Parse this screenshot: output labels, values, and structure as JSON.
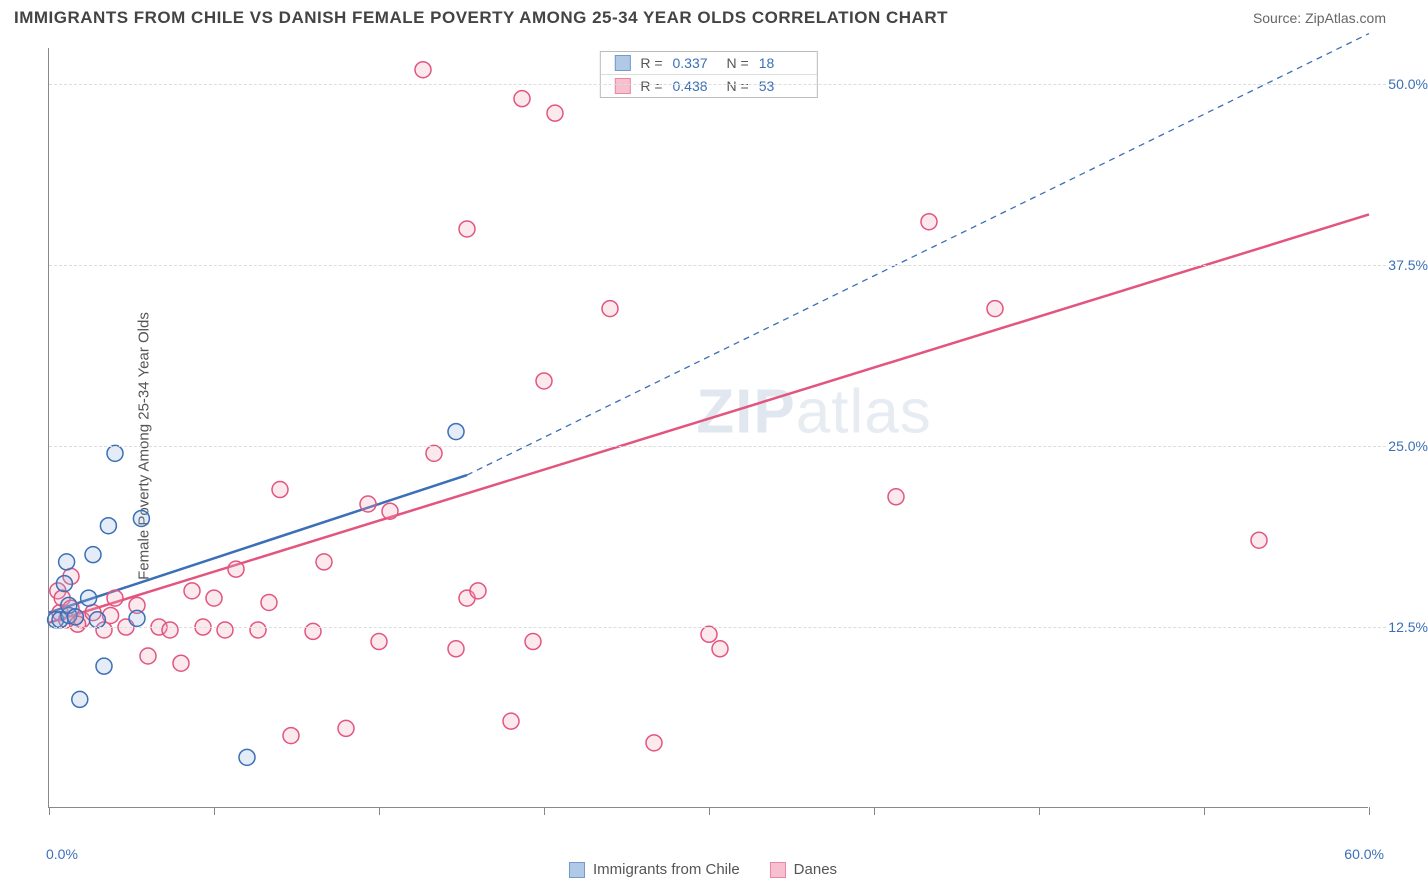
{
  "header": {
    "title": "IMMIGRANTS FROM CHILE VS DANISH FEMALE POVERTY AMONG 25-34 YEAR OLDS CORRELATION CHART",
    "source": "Source: ZipAtlas.com"
  },
  "y_axis_label": "Female Poverty Among 25-34 Year Olds",
  "watermark": {
    "bold": "ZIP",
    "light": "atlas"
  },
  "chart": {
    "type": "scatter",
    "background_color": "#ffffff",
    "grid_color": "#dddddd",
    "axis_color": "#888888",
    "tick_label_color": "#3b6fb6",
    "label_fontsize": 15,
    "tick_fontsize": 14,
    "xlim": [
      0,
      60
    ],
    "ylim": [
      0,
      52.5
    ],
    "y_ticks": [
      12.5,
      25.0,
      37.5,
      50.0
    ],
    "y_tick_labels": [
      "12.5%",
      "25.0%",
      "37.5%",
      "50.0%"
    ],
    "x_ticks": [
      0,
      7.5,
      15,
      22.5,
      30,
      37.5,
      45,
      52.5,
      60
    ],
    "x_origin_label": "0.0%",
    "x_end_label": "60.0%",
    "marker_radius": 8,
    "marker_stroke_width": 1.5,
    "marker_fill_opacity": 0.25
  },
  "stats": [
    {
      "series": "chile",
      "r_label": "R =",
      "r_value": "0.337",
      "n_label": "N =",
      "n_value": "18"
    },
    {
      "series": "danes",
      "r_label": "R =",
      "r_value": "0.438",
      "n_label": "N =",
      "n_value": "53"
    }
  ],
  "series": {
    "chile": {
      "label": "Immigrants from Chile",
      "color_stroke": "#3b6fb6",
      "color_fill": "#8fb3de",
      "trend": {
        "x1": 0,
        "y1": 13.5,
        "x2_solid": 19,
        "y2_solid": 23.0,
        "x2_dash": 60,
        "y2_dash": 53.5,
        "solid_width": 2.5,
        "dash_pattern": "6,5",
        "dash_width": 1.3
      },
      "points": [
        {
          "x": 0.3,
          "y": 13.0
        },
        {
          "x": 0.5,
          "y": 13.0
        },
        {
          "x": 0.7,
          "y": 15.5
        },
        {
          "x": 0.8,
          "y": 17.0
        },
        {
          "x": 0.9,
          "y": 13.3
        },
        {
          "x": 0.9,
          "y": 14.0
        },
        {
          "x": 1.2,
          "y": 13.2
        },
        {
          "x": 1.4,
          "y": 7.5
        },
        {
          "x": 1.8,
          "y": 14.5
        },
        {
          "x": 2.0,
          "y": 17.5
        },
        {
          "x": 2.2,
          "y": 13.0
        },
        {
          "x": 2.5,
          "y": 9.8
        },
        {
          "x": 2.7,
          "y": 19.5
        },
        {
          "x": 3.0,
          "y": 24.5
        },
        {
          "x": 4.0,
          "y": 13.1
        },
        {
          "x": 4.2,
          "y": 20.0
        },
        {
          "x": 9.0,
          "y": 3.5
        },
        {
          "x": 18.5,
          "y": 26.0
        }
      ]
    },
    "danes": {
      "label": "Danes",
      "color_stroke": "#e2557f",
      "color_fill": "#f4a6bd",
      "trend": {
        "x1": 0,
        "y1": 12.8,
        "x2": 60,
        "y2": 41.0,
        "width": 2.5
      },
      "points": [
        {
          "x": 0.4,
          "y": 15.0
        },
        {
          "x": 0.5,
          "y": 13.5
        },
        {
          "x": 0.6,
          "y": 14.5
        },
        {
          "x": 0.8,
          "y": 13.0
        },
        {
          "x": 1.0,
          "y": 13.8
        },
        {
          "x": 1.0,
          "y": 16.0
        },
        {
          "x": 1.2,
          "y": 13.2
        },
        {
          "x": 1.5,
          "y": 13.0
        },
        {
          "x": 2.0,
          "y": 13.5
        },
        {
          "x": 2.5,
          "y": 12.3
        },
        {
          "x": 3.0,
          "y": 14.5
        },
        {
          "x": 3.5,
          "y": 12.5
        },
        {
          "x": 4.0,
          "y": 14.0
        },
        {
          "x": 4.5,
          "y": 10.5
        },
        {
          "x": 5.0,
          "y": 12.5
        },
        {
          "x": 5.5,
          "y": 12.3
        },
        {
          "x": 6.0,
          "y": 10.0
        },
        {
          "x": 6.5,
          "y": 15.0
        },
        {
          "x": 7.0,
          "y": 12.5
        },
        {
          "x": 7.5,
          "y": 14.5
        },
        {
          "x": 8.0,
          "y": 12.3
        },
        {
          "x": 8.5,
          "y": 16.5
        },
        {
          "x": 9.5,
          "y": 12.3
        },
        {
          "x": 10.0,
          "y": 14.2
        },
        {
          "x": 10.5,
          "y": 22.0
        },
        {
          "x": 11.0,
          "y": 5.0
        },
        {
          "x": 12.0,
          "y": 12.2
        },
        {
          "x": 12.5,
          "y": 17.0
        },
        {
          "x": 13.5,
          "y": 5.5
        },
        {
          "x": 14.5,
          "y": 21.0
        },
        {
          "x": 15.0,
          "y": 11.5
        },
        {
          "x": 15.5,
          "y": 20.5
        },
        {
          "x": 17.0,
          "y": 51.0
        },
        {
          "x": 17.5,
          "y": 24.5
        },
        {
          "x": 18.5,
          "y": 11.0
        },
        {
          "x": 19.0,
          "y": 14.5
        },
        {
          "x": 19.0,
          "y": 40.0
        },
        {
          "x": 19.5,
          "y": 15.0
        },
        {
          "x": 21.0,
          "y": 6.0
        },
        {
          "x": 21.5,
          "y": 49.0
        },
        {
          "x": 22.0,
          "y": 11.5
        },
        {
          "x": 22.5,
          "y": 29.5
        },
        {
          "x": 23.0,
          "y": 48.0
        },
        {
          "x": 25.5,
          "y": 34.5
        },
        {
          "x": 27.5,
          "y": 4.5
        },
        {
          "x": 30.0,
          "y": 12.0
        },
        {
          "x": 30.5,
          "y": 11.0
        },
        {
          "x": 38.5,
          "y": 21.5
        },
        {
          "x": 40.0,
          "y": 40.5
        },
        {
          "x": 43.0,
          "y": 34.5
        },
        {
          "x": 55.0,
          "y": 18.5
        },
        {
          "x": 1.3,
          "y": 12.7
        },
        {
          "x": 2.8,
          "y": 13.3
        }
      ]
    }
  },
  "legend": [
    {
      "series": "chile",
      "label": "Immigrants from Chile"
    },
    {
      "series": "danes",
      "label": "Danes"
    }
  ]
}
